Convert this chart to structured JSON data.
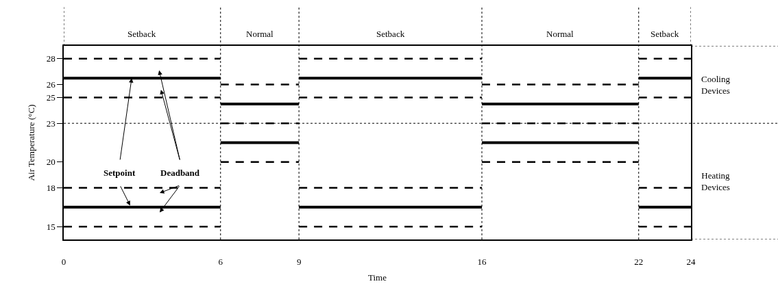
{
  "chart_data": {
    "type": "line",
    "xlabel": "Time",
    "ylabel": "Air Temperature (°C)",
    "xlim": [
      0,
      24
    ],
    "ylim": [
      14,
      29
    ],
    "xticks": [
      0,
      6,
      9,
      16,
      22,
      24
    ],
    "yticks": [
      15,
      18,
      20,
      23,
      25,
      26,
      28
    ],
    "series": [
      {
        "color": "#000000",
        "line_style": "solid",
        "x": [
          0,
          6
        ],
        "values": [
          26.5,
          26.5
        ]
      },
      {
        "color": "#000000",
        "line_style": "solid",
        "x": [
          9,
          16
        ],
        "values": [
          26.5,
          26.5
        ]
      },
      {
        "color": "#000000",
        "line_style": "solid",
        "x": [
          22,
          24
        ],
        "values": [
          26.5,
          26.5
        ]
      },
      {
        "color": "#000000",
        "line_style": "dashed",
        "x": [
          0,
          6
        ],
        "values": [
          28,
          28
        ]
      },
      {
        "color": "#000000",
        "line_style": "dashed",
        "x": [
          9,
          16
        ],
        "values": [
          28,
          28
        ]
      },
      {
        "color": "#000000",
        "line_style": "dashed",
        "x": [
          22,
          24
        ],
        "values": [
          28,
          28
        ]
      },
      {
        "color": "#000000",
        "line_style": "dashed",
        "x": [
          0,
          6
        ],
        "values": [
          25,
          25
        ]
      },
      {
        "color": "#000000",
        "line_style": "dashed",
        "x": [
          9,
          16
        ],
        "values": [
          25,
          25
        ]
      },
      {
        "color": "#000000",
        "line_style": "dashed",
        "x": [
          22,
          24
        ],
        "values": [
          25,
          25
        ]
      },
      {
        "color": "#000000",
        "line_style": "dashed",
        "x": [
          0,
          6
        ],
        "values": [
          18,
          18
        ]
      },
      {
        "color": "#000000",
        "line_style": "dashed",
        "x": [
          9,
          16
        ],
        "values": [
          18,
          18
        ]
      },
      {
        "color": "#000000",
        "line_style": "dashed",
        "x": [
          22,
          24
        ],
        "values": [
          18,
          18
        ]
      },
      {
        "color": "#000000",
        "line_style": "solid",
        "x": [
          0,
          6
        ],
        "values": [
          16.5,
          16.5
        ]
      },
      {
        "color": "#000000",
        "line_style": "solid",
        "x": [
          9,
          16
        ],
        "values": [
          16.5,
          16.5
        ]
      },
      {
        "color": "#000000",
        "line_style": "solid",
        "x": [
          22,
          24
        ],
        "values": [
          16.5,
          16.5
        ]
      },
      {
        "color": "#000000",
        "line_style": "dashed",
        "x": [
          0,
          6
        ],
        "values": [
          15,
          15
        ]
      },
      {
        "color": "#000000",
        "line_style": "dashed",
        "x": [
          9,
          16
        ],
        "values": [
          15,
          15
        ]
      },
      {
        "color": "#000000",
        "line_style": "dashed",
        "x": [
          22,
          24
        ],
        "values": [
          15,
          15
        ]
      },
      {
        "color": "#000000",
        "line_style": "dashed",
        "x": [
          6,
          9
        ],
        "values": [
          26,
          26
        ]
      },
      {
        "color": "#000000",
        "line_style": "dashed",
        "x": [
          16,
          22
        ],
        "values": [
          26,
          26
        ]
      },
      {
        "color": "#000000",
        "line_style": "solid",
        "x": [
          6,
          9
        ],
        "values": [
          24.5,
          24.5
        ]
      },
      {
        "color": "#000000",
        "line_style": "solid",
        "x": [
          16,
          22
        ],
        "values": [
          24.5,
          24.5
        ]
      },
      {
        "color": "#000000",
        "line_style": "dashed",
        "x": [
          6,
          9
        ],
        "values": [
          23,
          23
        ]
      },
      {
        "color": "#000000",
        "line_style": "dashed",
        "x": [
          16,
          22
        ],
        "values": [
          23,
          23
        ]
      },
      {
        "color": "#000000",
        "line_style": "solid",
        "x": [
          6,
          9
        ],
        "values": [
          21.5,
          21.5
        ]
      },
      {
        "color": "#000000",
        "line_style": "solid",
        "x": [
          16,
          22
        ],
        "values": [
          21.5,
          21.5
        ]
      },
      {
        "color": "#000000",
        "line_style": "dashed",
        "x": [
          6,
          9
        ],
        "values": [
          20,
          20
        ]
      },
      {
        "color": "#000000",
        "line_style": "dashed",
        "x": [
          16,
          22
        ],
        "values": [
          20,
          20
        ]
      }
    ],
    "ref_lines": [
      {
        "axis": "x",
        "value": 6,
        "line_style": "dotted"
      },
      {
        "axis": "x",
        "value": 9,
        "line_style": "dotted"
      },
      {
        "axis": "x",
        "value": 16,
        "line_style": "dotted"
      },
      {
        "axis": "x",
        "value": 22,
        "line_style": "dotted"
      },
      {
        "axis": "y",
        "value": 23,
        "line_style": "dotted"
      }
    ],
    "annotations": [
      {
        "text": "Setpoint",
        "x": 2.6,
        "y": 26.5
      },
      "Deadband",
      "Setback",
      "Normal",
      "Setback",
      "Normal",
      "Setback",
      "Cooling Devices",
      "Heating Devices"
    ]
  }
}
